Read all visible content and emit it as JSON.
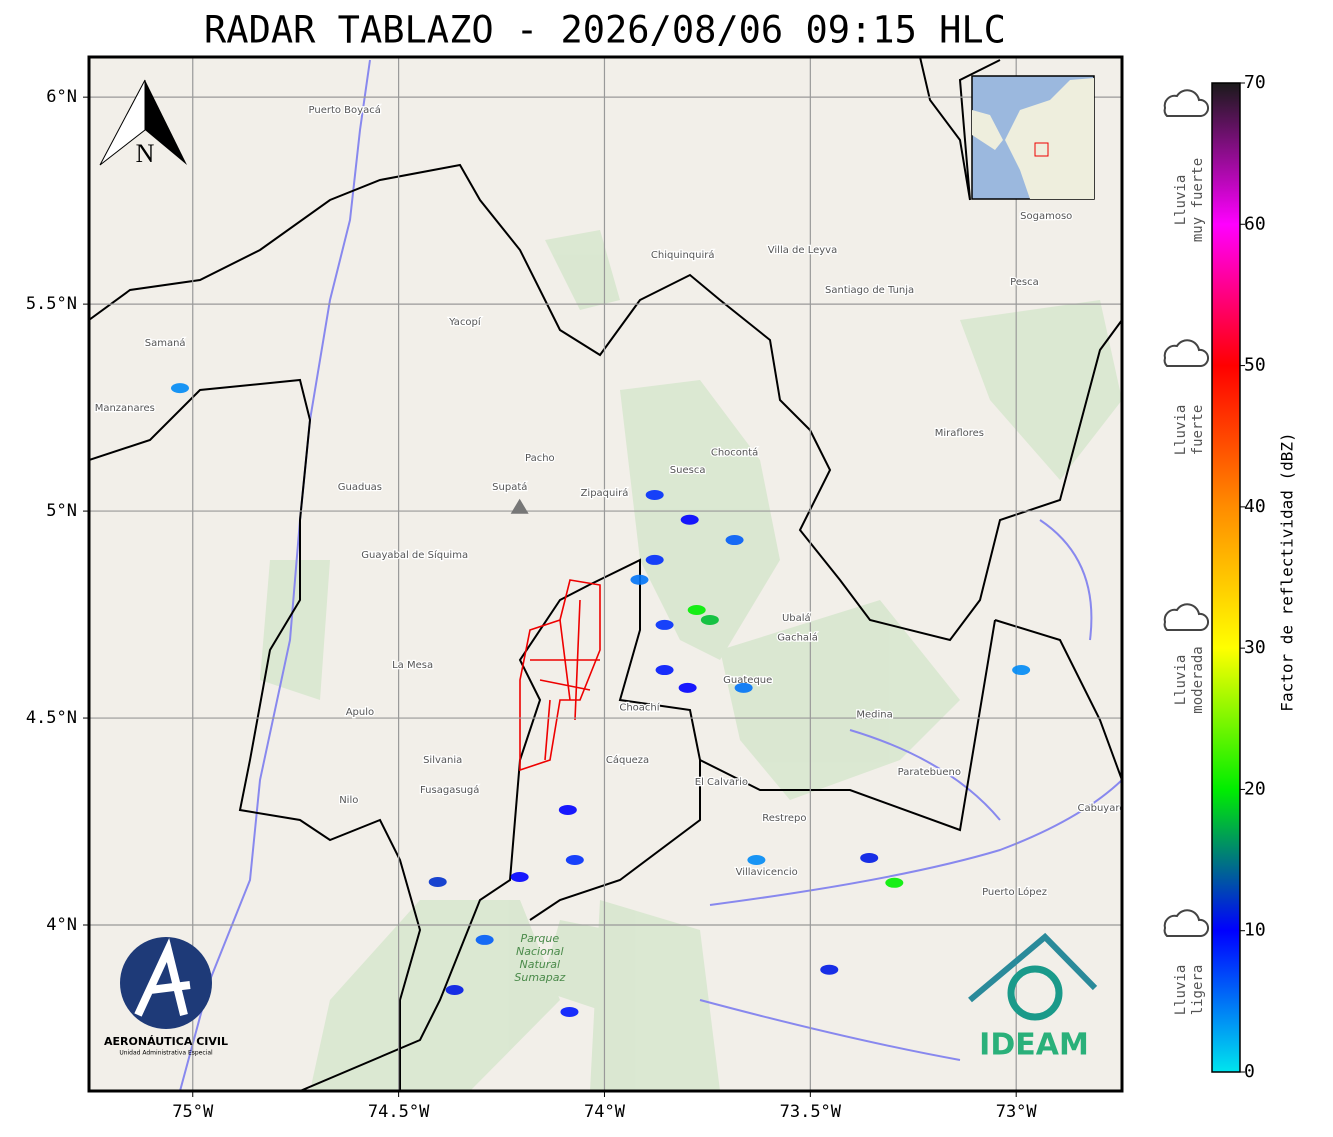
{
  "title": "RADAR TABLAZO - 2026/08/06 09:15 HLC",
  "map": {
    "xlim": [
      -75.252,
      -72.743
    ],
    "ylim": [
      3.599,
      6.097
    ],
    "xticks": [
      {
        "value": -75,
        "label": "75°W"
      },
      {
        "value": -74.5,
        "label": "74.5°W"
      },
      {
        "value": -74,
        "label": "74°W"
      },
      {
        "value": -73.5,
        "label": "73.5°W"
      },
      {
        "value": -73,
        "label": "73°W"
      }
    ],
    "yticks": [
      {
        "value": 4,
        "label": "4°N"
      },
      {
        "value": 4.5,
        "label": "4.5°N"
      },
      {
        "value": 5,
        "label": "5°N"
      },
      {
        "value": 5.5,
        "label": "5.5°N"
      },
      {
        "value": 6,
        "label": "6°N"
      }
    ],
    "grid": true,
    "north_label": "N",
    "radar_site": {
      "lon": -74.206,
      "lat": 5.008
    },
    "places": [
      {
        "name": "Villavicencio",
        "lon": -73.606,
        "lat": 4.128
      },
      {
        "name": "Zipaquirá",
        "lon": -74.0,
        "lat": 5.044
      },
      {
        "name": "Sogamoso",
        "lon": -72.927,
        "lat": 5.713
      },
      {
        "name": "Villa de Leyva",
        "lon": -73.519,
        "lat": 5.631
      },
      {
        "name": "Santiago de Tunja",
        "lon": -73.356,
        "lat": 5.534
      },
      {
        "name": "Fusagasugá",
        "lon": -74.376,
        "lat": 4.326
      },
      {
        "name": "Guaduas",
        "lon": -74.594,
        "lat": 5.058
      },
      {
        "name": "La Mesa",
        "lon": -74.466,
        "lat": 4.628
      },
      {
        "name": "Chiquinquirá",
        "lon": -73.81,
        "lat": 5.619
      },
      {
        "name": "Guateque",
        "lon": -73.652,
        "lat": 4.592
      },
      {
        "name": "Restrepo",
        "lon": -73.563,
        "lat": 4.259
      },
      {
        "name": "Yacopí",
        "lon": -74.339,
        "lat": 5.457
      },
      {
        "name": "Pacho",
        "lon": -74.157,
        "lat": 5.128
      },
      {
        "name": "Supatá",
        "lon": -74.23,
        "lat": 5.058
      },
      {
        "name": "Choachí",
        "lon": -73.915,
        "lat": 4.525
      },
      {
        "name": "Cáqueza",
        "lon": -73.944,
        "lat": 4.399
      },
      {
        "name": "Gachalá",
        "lon": -73.531,
        "lat": 4.694
      },
      {
        "name": "Medina",
        "lon": -73.344,
        "lat": 4.508
      },
      {
        "name": "Paratebueno",
        "lon": -73.211,
        "lat": 4.37
      },
      {
        "name": "Puerto López",
        "lon": -73.004,
        "lat": 4.08
      },
      {
        "name": "Puerto Boyacá",
        "lon": -74.631,
        "lat": 5.969
      },
      {
        "name": "Samaná",
        "lon": -75.067,
        "lat": 5.406
      },
      {
        "name": "Manzanares",
        "lon": -75.165,
        "lat": 5.249
      },
      {
        "name": "Pesca",
        "lon": -72.98,
        "lat": 5.554
      },
      {
        "name": "Miraflores",
        "lon": -73.138,
        "lat": 5.189
      },
      {
        "name": "Guayabal de Síquima",
        "lon": -74.461,
        "lat": 4.894
      },
      {
        "name": "Silvania",
        "lon": -74.393,
        "lat": 4.399
      },
      {
        "name": "Nilo",
        "lon": -74.621,
        "lat": 4.302
      },
      {
        "name": "Apulo",
        "lon": -74.594,
        "lat": 4.515
      },
      {
        "name": "Ubalá",
        "lon": -73.534,
        "lat": 4.742
      },
      {
        "name": "Cabuyaro",
        "lon": -72.793,
        "lat": 4.283
      },
      {
        "name": "El Calvario",
        "lon": -73.716,
        "lat": 4.346
      },
      {
        "name": "Chocontá",
        "lon": -73.684,
        "lat": 5.141
      },
      {
        "name": "Suesca",
        "lon": -73.798,
        "lat": 5.099
      }
    ],
    "park": {
      "lines": [
        "Parque",
        "Nacional",
        "Natural",
        "Sumapaz"
      ],
      "lon": -74.157,
      "lat": 3.916
    },
    "echoes": [
      {
        "lon": -73.878,
        "lat": 5.039,
        "dbz": 8
      },
      {
        "lon": -73.793,
        "lat": 4.979,
        "dbz": 10
      },
      {
        "lon": -73.878,
        "lat": 4.882,
        "dbz": 8
      },
      {
        "lon": -73.776,
        "lat": 4.761,
        "dbz": 20
      },
      {
        "lon": -73.744,
        "lat": 4.737,
        "dbz": 18
      },
      {
        "lon": -73.854,
        "lat": 4.725,
        "dbz": 8
      },
      {
        "lon": -73.854,
        "lat": 4.616,
        "dbz": 9
      },
      {
        "lon": -73.798,
        "lat": 4.573,
        "dbz": 10
      },
      {
        "lon": -73.915,
        "lat": 4.834,
        "dbz": 5
      },
      {
        "lon": -73.684,
        "lat": 4.93,
        "dbz": 6
      },
      {
        "lon": -74.089,
        "lat": 4.278,
        "dbz": 10
      },
      {
        "lon": -74.072,
        "lat": 4.157,
        "dbz": 8
      },
      {
        "lon": -74.206,
        "lat": 4.116,
        "dbz": 10
      },
      {
        "lon": -74.405,
        "lat": 4.104,
        "dbz": 12
      },
      {
        "lon": -74.291,
        "lat": 3.964,
        "dbz": 6
      },
      {
        "lon": -74.364,
        "lat": 3.843,
        "dbz": 11
      },
      {
        "lon": -74.085,
        "lat": 3.79,
        "dbz": 9
      },
      {
        "lon": -73.454,
        "lat": 3.892,
        "dbz": 11
      },
      {
        "lon": -73.357,
        "lat": 4.162,
        "dbz": 11
      },
      {
        "lon": -73.296,
        "lat": 4.102,
        "dbz": 20
      },
      {
        "lon": -75.031,
        "lat": 5.297,
        "dbz": 4
      },
      {
        "lon": -73.631,
        "lat": 4.157,
        "dbz": 4
      },
      {
        "lon": -72.988,
        "lat": 4.616,
        "dbz": 4
      },
      {
        "lon": -73.662,
        "lat": 4.573,
        "dbz": 5
      }
    ]
  },
  "colorbar": {
    "label": "Factor de reflectividad (dBZ)",
    "lim": [
      0,
      70
    ],
    "ticks": [
      0,
      10,
      20,
      30,
      40,
      50,
      60,
      70
    ],
    "colors": [
      "#00e5ee",
      "#0000ff",
      "#00ee00",
      "#ffff00",
      "#ff8c00",
      "#ff0000",
      "#ff00ff",
      "#1a1a1a"
    ]
  },
  "rain_categories": [
    {
      "lines": [
        "Lluvia",
        "muy fuerte"
      ]
    },
    {
      "lines": [
        "Lluvia",
        "fuerte"
      ]
    },
    {
      "lines": [
        "Lluvia",
        "moderada"
      ]
    },
    {
      "lines": [
        "Lluvia",
        "ligera"
      ]
    }
  ],
  "logos": {
    "aerocivil": "AERONÁUTICA CIVIL",
    "aerocivil_sub": "Unidad Administrativa Especial",
    "ideam": "IDEAM"
  }
}
